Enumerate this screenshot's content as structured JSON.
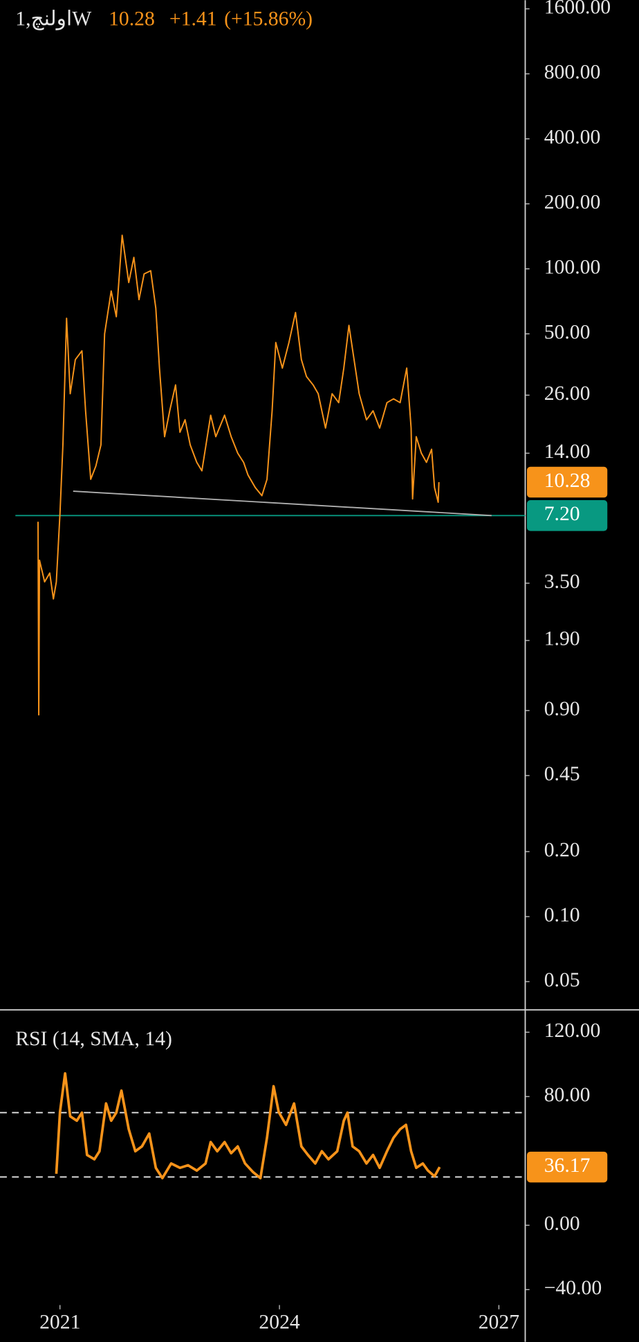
{
  "chart_data": [
    {
      "type": "line",
      "symbol": "1,اولنچW",
      "last": 10.28,
      "change": {
        "value": 1.41,
        "label": "+1.41"
      },
      "change_pct": {
        "value": 15.86,
        "label": "(+15.86%)"
      },
      "log_scale": true,
      "color": "#f7931a",
      "x": [
        2020.7,
        2020.71,
        2020.72,
        2020.79,
        2020.86,
        2020.91,
        2020.95,
        2021.0,
        2021.04,
        2021.09,
        2021.14,
        2021.21,
        2021.3,
        2021.35,
        2021.42,
        2021.49,
        2021.56,
        2021.61,
        2021.7,
        2021.77,
        2021.85,
        2021.94,
        2022.01,
        2022.08,
        2022.15,
        2022.24,
        2022.31,
        2022.36,
        2022.43,
        2022.5,
        2022.58,
        2022.64,
        2022.71,
        2022.78,
        2022.87,
        2022.94,
        2023.06,
        2023.13,
        2023.25,
        2023.34,
        2023.43,
        2023.51,
        2023.57,
        2023.67,
        2023.76,
        2023.83,
        2023.9,
        2023.95,
        2024.04,
        2024.13,
        2024.22,
        2024.3,
        2024.37,
        2024.46,
        2024.53,
        2024.63,
        2024.72,
        2024.81,
        2024.88,
        2024.95,
        2025.02,
        2025.09,
        2025.19,
        2025.28,
        2025.37,
        2025.47,
        2025.56,
        2025.65,
        2025.74,
        2025.8,
        2025.82,
        2025.87,
        2025.94,
        2026.01,
        2026.08,
        2026.12,
        2026.17,
        2026.18
      ],
      "values": [
        6.74,
        0.86,
        4.47,
        3.55,
        3.9,
        2.96,
        3.55,
        7.36,
        15.3,
        59,
        26.4,
        38,
        41.7,
        22,
        10.6,
        12.2,
        15.3,
        50,
        79,
        60,
        143,
        86.4,
        113,
        72,
        94.7,
        98,
        65.7,
        34.7,
        16.7,
        22,
        29,
        17.5,
        20,
        15.3,
        12.7,
        11.6,
        21,
        16.7,
        21,
        16.7,
        14,
        12.7,
        11.1,
        9.7,
        8.9,
        10.6,
        22,
        45.6,
        34.7,
        45.6,
        62.8,
        38,
        31.7,
        29,
        26.4,
        18.3,
        26.4,
        24,
        34.7,
        54.7,
        38,
        26.4,
        20,
        22,
        18.3,
        24,
        25,
        24,
        34.7,
        18.3,
        8.6,
        16.7,
        14,
        12.7,
        14.6,
        9.7,
        8.3,
        10.28
      ],
      "xlim": [
        2020.18,
        2027.36
      ],
      "ylim": [
        0.037,
        1755
      ],
      "yticks": [
        {
          "value": 1600,
          "label": "1600.00"
        },
        {
          "value": 800,
          "label": "800.00"
        },
        {
          "value": 400,
          "label": "400.00"
        },
        {
          "value": 200,
          "label": "200.00"
        },
        {
          "value": 100,
          "label": "100.00"
        },
        {
          "value": 50,
          "label": "50.00"
        },
        {
          "value": 26,
          "label": "26.00"
        },
        {
          "value": 14,
          "label": "14.00"
        },
        {
          "value": 3.5,
          "label": "3.50"
        },
        {
          "value": 1.9,
          "label": "1.90"
        },
        {
          "value": 0.9,
          "label": "0.90"
        },
        {
          "value": 0.45,
          "label": "0.45"
        },
        {
          "value": 0.2,
          "label": "0.20"
        },
        {
          "value": 0.1,
          "label": "0.10"
        },
        {
          "value": 0.05,
          "label": "0.05"
        }
      ],
      "price_lines": [
        {
          "value": 10.28,
          "color": "#f7931a"
        },
        {
          "value": 7.2,
          "label": "7.20",
          "color": "#089981"
        }
      ],
      "trendline": {
        "x": [
          2021.18,
          2026.9
        ],
        "values": [
          9.34,
          7.2
        ],
        "color": "#b0b0b0"
      }
    },
    {
      "type": "line",
      "title": "RSI (14, SMA, 14)",
      "color": "#f7931a",
      "last": 36.17,
      "x": [
        2020.95,
        2021.0,
        2021.07,
        2021.14,
        2021.23,
        2021.3,
        2021.37,
        2021.47,
        2021.54,
        2021.63,
        2021.7,
        2021.77,
        2021.84,
        2021.94,
        2022.03,
        2022.12,
        2022.22,
        2022.31,
        2022.4,
        2022.52,
        2022.64,
        2022.75,
        2022.87,
        2022.99,
        2023.06,
        2023.15,
        2023.25,
        2023.34,
        2023.43,
        2023.53,
        2023.64,
        2023.74,
        2023.83,
        2023.92,
        2023.99,
        2024.09,
        2024.2,
        2024.3,
        2024.39,
        2024.49,
        2024.58,
        2024.67,
        2024.79,
        2024.88,
        2024.93,
        2025.0,
        2025.09,
        2025.19,
        2025.28,
        2025.37,
        2025.47,
        2025.56,
        2025.65,
        2025.73,
        2025.8,
        2025.87,
        2025.96,
        2026.03,
        2026.12,
        2026.19
      ],
      "values": [
        32,
        70.4,
        94.4,
        67.7,
        65,
        70,
        43.7,
        41,
        46,
        75.7,
        65,
        70,
        83.7,
        59.7,
        46,
        49,
        57,
        35.7,
        29.3,
        38.4,
        35.7,
        37.3,
        34,
        38.4,
        51.7,
        46,
        51.7,
        44.8,
        49,
        38.4,
        33,
        29.3,
        54.4,
        86.4,
        70.4,
        62.4,
        75.7,
        49,
        43.7,
        38.4,
        46,
        41,
        46,
        65,
        70,
        49,
        46,
        38.4,
        43.7,
        35.7,
        46,
        54.4,
        59.7,
        62.4,
        46,
        35.7,
        38.4,
        34,
        30.4,
        36.17
      ],
      "xlim": [
        2020.18,
        2027.36
      ],
      "ylim": [
        -49.6,
        133.9
      ],
      "yticks": [
        {
          "value": 120,
          "label": "120.00"
        },
        {
          "value": 80,
          "label": "80.00"
        },
        {
          "value": 0,
          "label": "0.00"
        },
        {
          "value": -40,
          "label": "−40.00"
        }
      ],
      "bands": [
        70,
        30
      ],
      "xticks": [
        2021,
        2024,
        2027
      ]
    }
  ]
}
